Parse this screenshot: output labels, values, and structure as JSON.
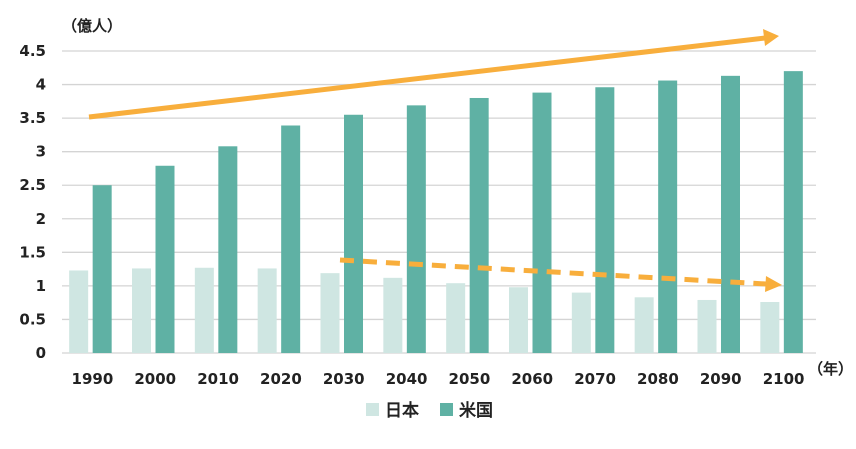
{
  "chart_data": {
    "type": "bar",
    "title": "",
    "ylabel": "（億人）",
    "xlabel": "（年）",
    "ylim": [
      0,
      4.5
    ],
    "yticks": [
      0,
      0.5,
      1,
      1.5,
      2,
      2.5,
      3,
      3.5,
      4,
      4.5
    ],
    "ytick_labels": [
      "0",
      "0.5",
      "1",
      "1.5",
      "2",
      "2.5",
      "3",
      "3.5",
      "4",
      "4.5"
    ],
    "grid": true,
    "legend_position": "bottom",
    "categories": [
      "1990",
      "2000",
      "2010",
      "2020",
      "2030",
      "2040",
      "2050",
      "2060",
      "2070",
      "2080",
      "2090",
      "2100"
    ],
    "series": [
      {
        "name": "日本",
        "color": "#cfe6e2",
        "values": [
          1.23,
          1.26,
          1.27,
          1.26,
          1.19,
          1.12,
          1.04,
          0.98,
          0.9,
          0.83,
          0.79,
          0.76
        ]
      },
      {
        "name": "米国",
        "color": "#5fb1a4",
        "values": [
          2.5,
          2.79,
          3.08,
          3.39,
          3.55,
          3.69,
          3.8,
          3.88,
          3.96,
          4.06,
          4.13,
          4.2
        ]
      }
    ],
    "annotations": [
      {
        "type": "arrow",
        "style": "solid",
        "color": "#f8ae3c",
        "meaning": "upward trend (米国)"
      },
      {
        "type": "arrow",
        "style": "dashed",
        "color": "#f8ae3c",
        "meaning": "downward trend (日本)"
      }
    ]
  }
}
